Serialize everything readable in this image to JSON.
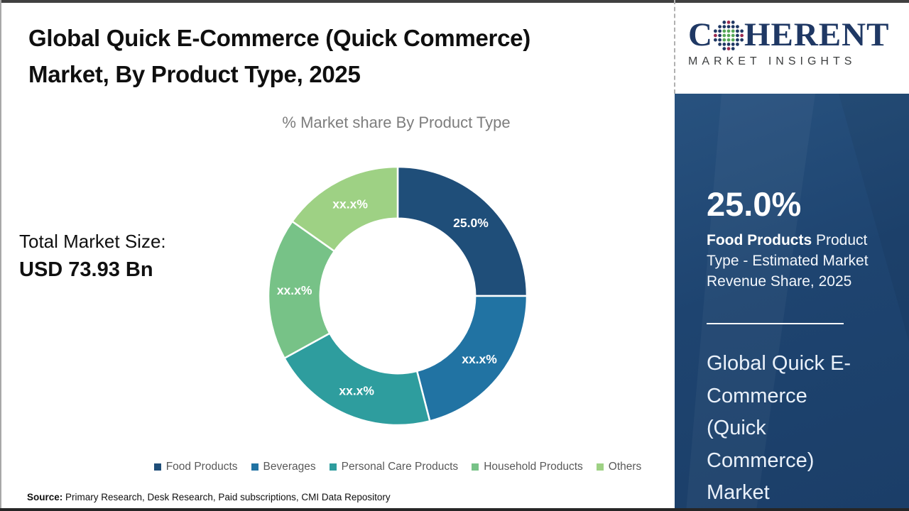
{
  "page": {
    "title_lines": [
      "Global Quick E-Commerce (Quick Commerce)",
      "Market, By Product Type, 2025"
    ],
    "subtitle": "% Market share By Product Type",
    "total_market": {
      "label": "Total Market Size:",
      "value": "USD 73.93 Bn"
    },
    "source": {
      "label": "Source:",
      "text": " Primary Research, Desk Research, Paid subscriptions, CMI Data Repository"
    }
  },
  "brand": {
    "logo_part1": "C",
    "logo_part2": "HERENT",
    "logo_subtitle": "MARKET INSIGHTS",
    "logo_color": "#1F3864",
    "globe_colors": {
      "green": "#55A757",
      "blue": "#1F3864",
      "red": "#9C2B50"
    }
  },
  "sidebar": {
    "stat_value": "25.0%",
    "stat_desc_bold": "Food Products",
    "stat_desc_rest": " Product Type - Estimated Market Revenue Share, 2025",
    "headline_lines": [
      "Global Quick E-",
      "Commerce",
      "(Quick",
      "Commerce)",
      "Market"
    ],
    "panel_color": "#1E4470"
  },
  "chart_data": {
    "type": "pie",
    "subtype": "donut",
    "title": "% Market share By Product Type",
    "categories": [
      "Food Products",
      "Beverages",
      "Personal Care Products",
      "Household Products",
      "Others"
    ],
    "slice_labels": [
      "25.0%",
      "xx.x%",
      "xx.x%",
      "xx.x%",
      "xx.x%"
    ],
    "values_pct": [
      25.0,
      21.0,
      21.0,
      17.8,
      15.2
    ],
    "disclosed_values": {
      "Food Products": 25.0
    },
    "colors": [
      "#1F4E79",
      "#2173A3",
      "#2E9D9E",
      "#77C287",
      "#9ED184"
    ],
    "label_color": "#FFFFFF",
    "start_angle_deg": 0,
    "direction": "clockwise",
    "inner_radius_ratio": 0.6,
    "legend_position": "bottom"
  }
}
